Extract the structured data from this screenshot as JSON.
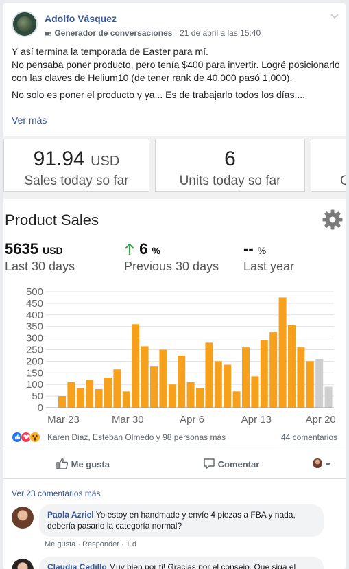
{
  "post": {
    "author": "Adolfo Vásquez",
    "group": "Generador de conversaciones",
    "date": "· 21 de abril a las 15:40",
    "p1": "Y así termina la temporada de Easter para mí.",
    "p2": "No pensaba poner producto, pero tenía $400 para invertir. Logré posicionarlo con las claves de Helium10 (de tener rank de 40,000 pasó 1,000).",
    "p3": "No solo es poner el producto y ya... Es de trabajarlo todos los días....",
    "see_more": "Ver más"
  },
  "kpis": {
    "sales_value": "91.94",
    "sales_unit": "USD",
    "sales_label": "Sales today so far",
    "units_value": "6",
    "units_label": "Units today so far",
    "third_label": "C"
  },
  "product_sales": {
    "title": "Product Sales",
    "stat1_value": "5635",
    "stat1_unit": "USD",
    "stat1_label": "Last 30 days",
    "stat2_value": "6",
    "stat2_unit": "%",
    "stat2_label": "Previous 30 days",
    "stat3_value": "--",
    "stat3_unit": "%",
    "stat3_label": "Last year"
  },
  "chart_data": {
    "type": "bar",
    "title": "",
    "xlabel": "",
    "ylabel": "",
    "ylim": [
      0,
      500
    ],
    "yticks": [
      0,
      50,
      100,
      150,
      200,
      250,
      300,
      350,
      400,
      450,
      500
    ],
    "xtick_labels": [
      "Mar 23",
      "Mar 30",
      "Apr 6",
      "Apr 13",
      "Apr 20"
    ],
    "series": [
      {
        "values": [
          50,
          110,
          85,
          120,
          80,
          130,
          165,
          70,
          360,
          265,
          180,
          250,
          100,
          225,
          110,
          85,
          280,
          200,
          185,
          70,
          260,
          135,
          290,
          325,
          475,
          355,
          260,
          200
        ]
      },
      {
        "values": [
          210,
          90
        ]
      }
    ],
    "colors": {
      "current": "#f7a01c",
      "projected": "#cfcfcf"
    },
    "grid": true
  },
  "reactions": {
    "names": "Karen Diaz, Esteban Olmedo y 98 personas más",
    "comments_count": "44 comentarios"
  },
  "actions": {
    "like": "Me gusta",
    "comment": "Comentar"
  },
  "comments": {
    "see_more": "Ver 23 comentarios más",
    "c1_name": "Paola Azriel",
    "c1_text": "Yo estoy en handmade y envíe 4 piezas a FBA y nada, debería pasarlo la categoría normal?",
    "c1_like": "Me gusta",
    "c1_reply": "· Responder",
    "c1_time": "· 1 d",
    "c2_name": "Claudia Cedillo",
    "c2_text": "Muy bien por ti! Gracias por el consejo. Que siga el"
  }
}
